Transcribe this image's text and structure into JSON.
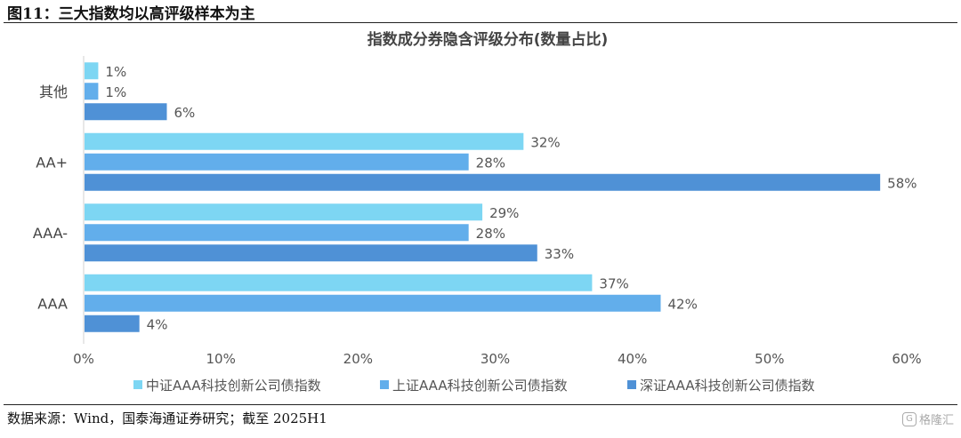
{
  "figure": {
    "title": "图11：三大指数均以高评级样本为主",
    "source": "数据来源：Wind，国泰海通证券研究；截至 2025H1",
    "watermark_text": "格隆汇",
    "watermark_icon": "G"
  },
  "chart_data": {
    "type": "bar",
    "orientation": "horizontal",
    "title": "指数成分券隐含评级分布(数量占比)",
    "categories": [
      "其他",
      "AA+",
      "AAA-",
      "AAA"
    ],
    "series": [
      {
        "name": "中证AAA科技创新公司债指数",
        "color": "#7dd6f3",
        "values": [
          1,
          32,
          29,
          37
        ],
        "labels": [
          "1%",
          "32%",
          "29%",
          "37%"
        ]
      },
      {
        "name": "上证AAA科技创新公司债指数",
        "color": "#62aeeb",
        "values": [
          1,
          28,
          28,
          42
        ],
        "labels": [
          "1%",
          "28%",
          "28%",
          "42%"
        ]
      },
      {
        "name": "深证AAA科技创新公司债指数",
        "color": "#4f91d6",
        "values": [
          6,
          58,
          33,
          4
        ],
        "labels": [
          "6%",
          "58%",
          "33%",
          "4%"
        ]
      }
    ],
    "x_ticks": [
      0,
      10,
      20,
      30,
      40,
      50,
      60
    ],
    "x_tick_labels": [
      "0%",
      "10%",
      "20%",
      "30%",
      "40%",
      "50%",
      "60%"
    ],
    "xlim": [
      0,
      60
    ],
    "grid": false,
    "legend_position": "bottom"
  }
}
